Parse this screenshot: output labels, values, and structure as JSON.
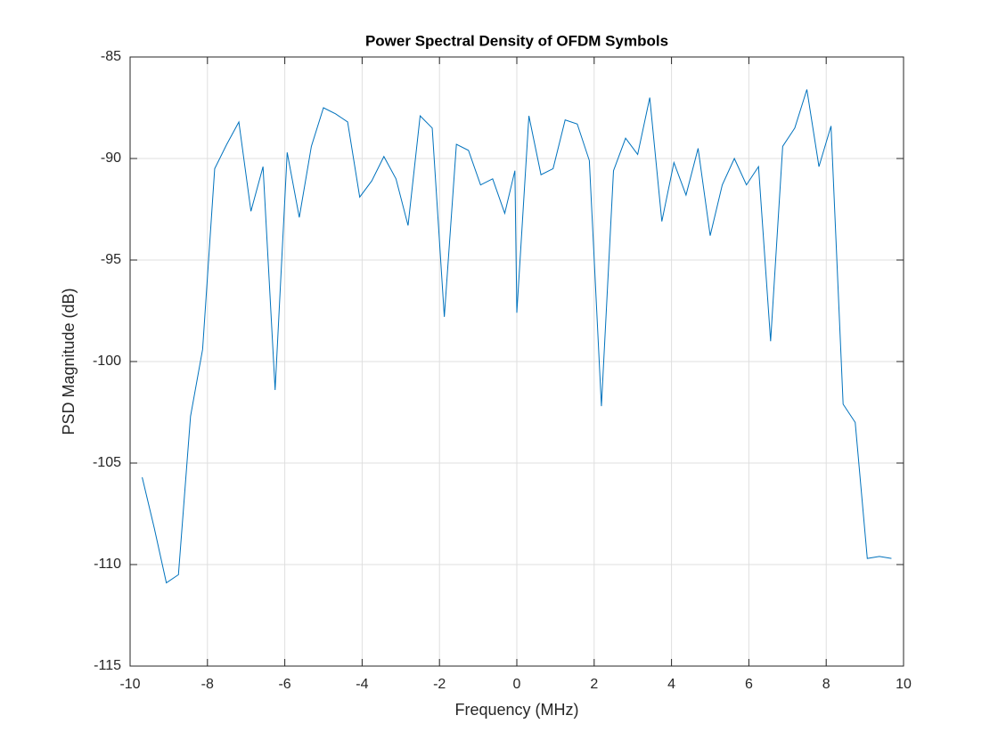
{
  "chart_data": {
    "type": "line",
    "title": "Power Spectral Density of OFDM Symbols",
    "x_label": "Frequency (MHz)",
    "y_label": "PSD Magnitude (dB)",
    "x": [
      -9.6875,
      -9.375,
      -9.0625,
      -8.75,
      -8.4375,
      -8.125,
      -7.8125,
      -7.5,
      -7.1875,
      -6.875,
      -6.5625,
      -6.25,
      -5.9375,
      -5.625,
      -5.3125,
      -5.0,
      -4.6875,
      -4.375,
      -4.0625,
      -3.75,
      -3.4375,
      -3.125,
      -2.8125,
      -2.5,
      -2.1875,
      -1.875,
      -1.5625,
      -1.25,
      -0.9375,
      -0.625,
      -0.3125,
      -0.05,
      0,
      0.3125,
      0.625,
      0.9375,
      1.25,
      1.5625,
      1.875,
      2.1875,
      2.5,
      2.8125,
      3.125,
      3.4375,
      3.75,
      4.0625,
      4.375,
      4.6875,
      5.0,
      5.3125,
      5.625,
      5.9375,
      6.25,
      6.5625,
      6.875,
      7.1875,
      7.5,
      7.8125,
      8.125,
      8.4375,
      8.75,
      9.0625,
      9.375,
      9.6875
    ],
    "series": [
      {
        "name": "PSD",
        "color": "#0072bd",
        "values": [
          -105.7,
          -108.2,
          -110.9,
          -110.5,
          -102.7,
          -99.4,
          -90.5,
          -89.3,
          -88.2,
          -92.6,
          -90.4,
          -101.4,
          -89.7,
          -92.9,
          -89.4,
          -87.5,
          -87.8,
          -88.2,
          -91.9,
          -91.1,
          -89.9,
          -91.0,
          -93.3,
          -87.9,
          -88.5,
          -97.8,
          -89.3,
          -89.6,
          -91.3,
          -91.0,
          -92.7,
          -90.6,
          -97.6,
          -87.9,
          -90.8,
          -90.5,
          -88.1,
          -88.3,
          -90.1,
          -102.2,
          -90.6,
          -89.0,
          -89.8,
          -87.0,
          -93.1,
          -90.2,
          -91.8,
          -89.5,
          -93.8,
          -91.3,
          -90.0,
          -91.3,
          -90.4,
          -99.0,
          -89.4,
          -88.5,
          -86.6,
          -90.4,
          -88.4,
          -102.1,
          -103.0,
          -109.7,
          -109.6,
          -109.7
        ]
      }
    ],
    "xlim": [
      -10,
      10
    ],
    "xticks": [
      -10,
      -8,
      -6,
      -4,
      -2,
      0,
      2,
      4,
      6,
      8,
      10
    ],
    "ylim": [
      -115,
      -85
    ],
    "yticks": [
      -115,
      -110,
      -105,
      -100,
      -95,
      -90,
      -85
    ],
    "grid": true
  }
}
